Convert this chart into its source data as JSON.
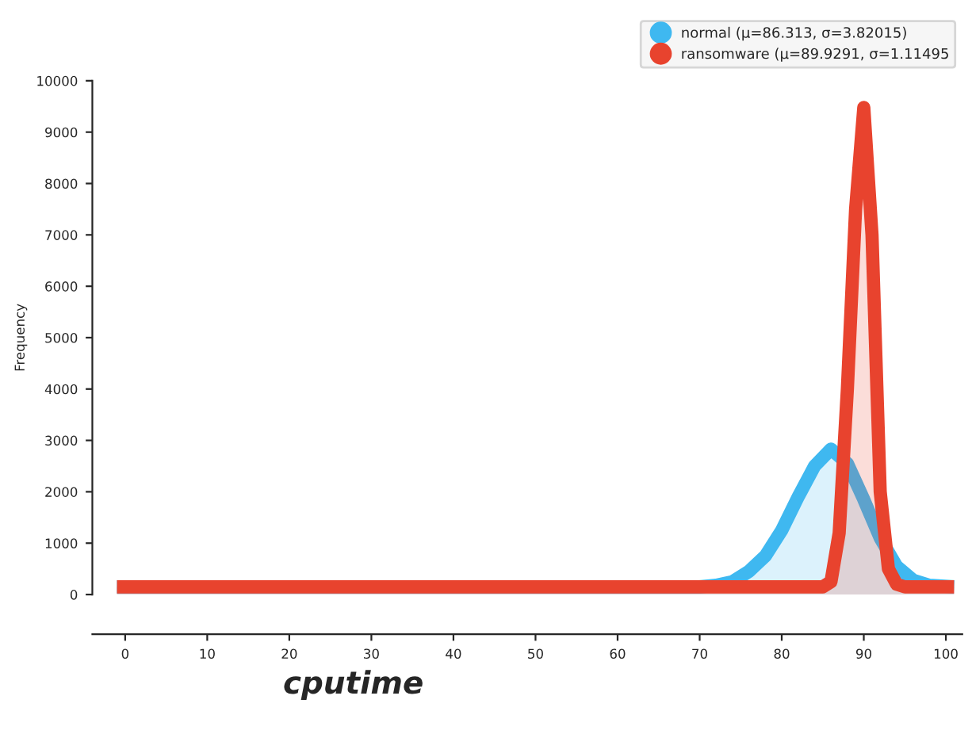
{
  "chart_data": {
    "type": "area",
    "xlabel": "cputime",
    "ylabel": "Frequency",
    "xlim": [
      -4,
      102
    ],
    "xticks": [
      0,
      10,
      20,
      30,
      40,
      50,
      60,
      70,
      80,
      90,
      100
    ],
    "ylim": [
      0,
      10000
    ],
    "yticks": [
      0,
      1000,
      2000,
      3000,
      4000,
      5000,
      6000,
      7000,
      8000,
      9000,
      10000
    ],
    "grid": false,
    "legend": "top right",
    "marker": "none",
    "line_style": "solid",
    "series": [
      {
        "name": "normal (μ=86.313, σ=3.82015)",
        "color": "#3fb8f0",
        "x": [
          -1,
          70,
          72,
          74,
          76,
          78,
          80,
          82,
          84,
          86,
          88,
          90,
          92,
          94,
          96,
          98,
          101
        ],
        "values": [
          150,
          150,
          180,
          250,
          450,
          750,
          1250,
          1900,
          2500,
          2830,
          2550,
          1850,
          1100,
          550,
          280,
          180,
          150
        ]
      },
      {
        "name": "ransomware (μ=89.9291, σ=1.11495",
        "color": "#e8432e",
        "x": [
          -1,
          85,
          86,
          87,
          88,
          89,
          90,
          91,
          92,
          93,
          94,
          95,
          101
        ],
        "values": [
          150,
          150,
          250,
          1200,
          4000,
          7500,
          9480,
          7000,
          2000,
          500,
          200,
          150,
          150
        ]
      }
    ]
  }
}
